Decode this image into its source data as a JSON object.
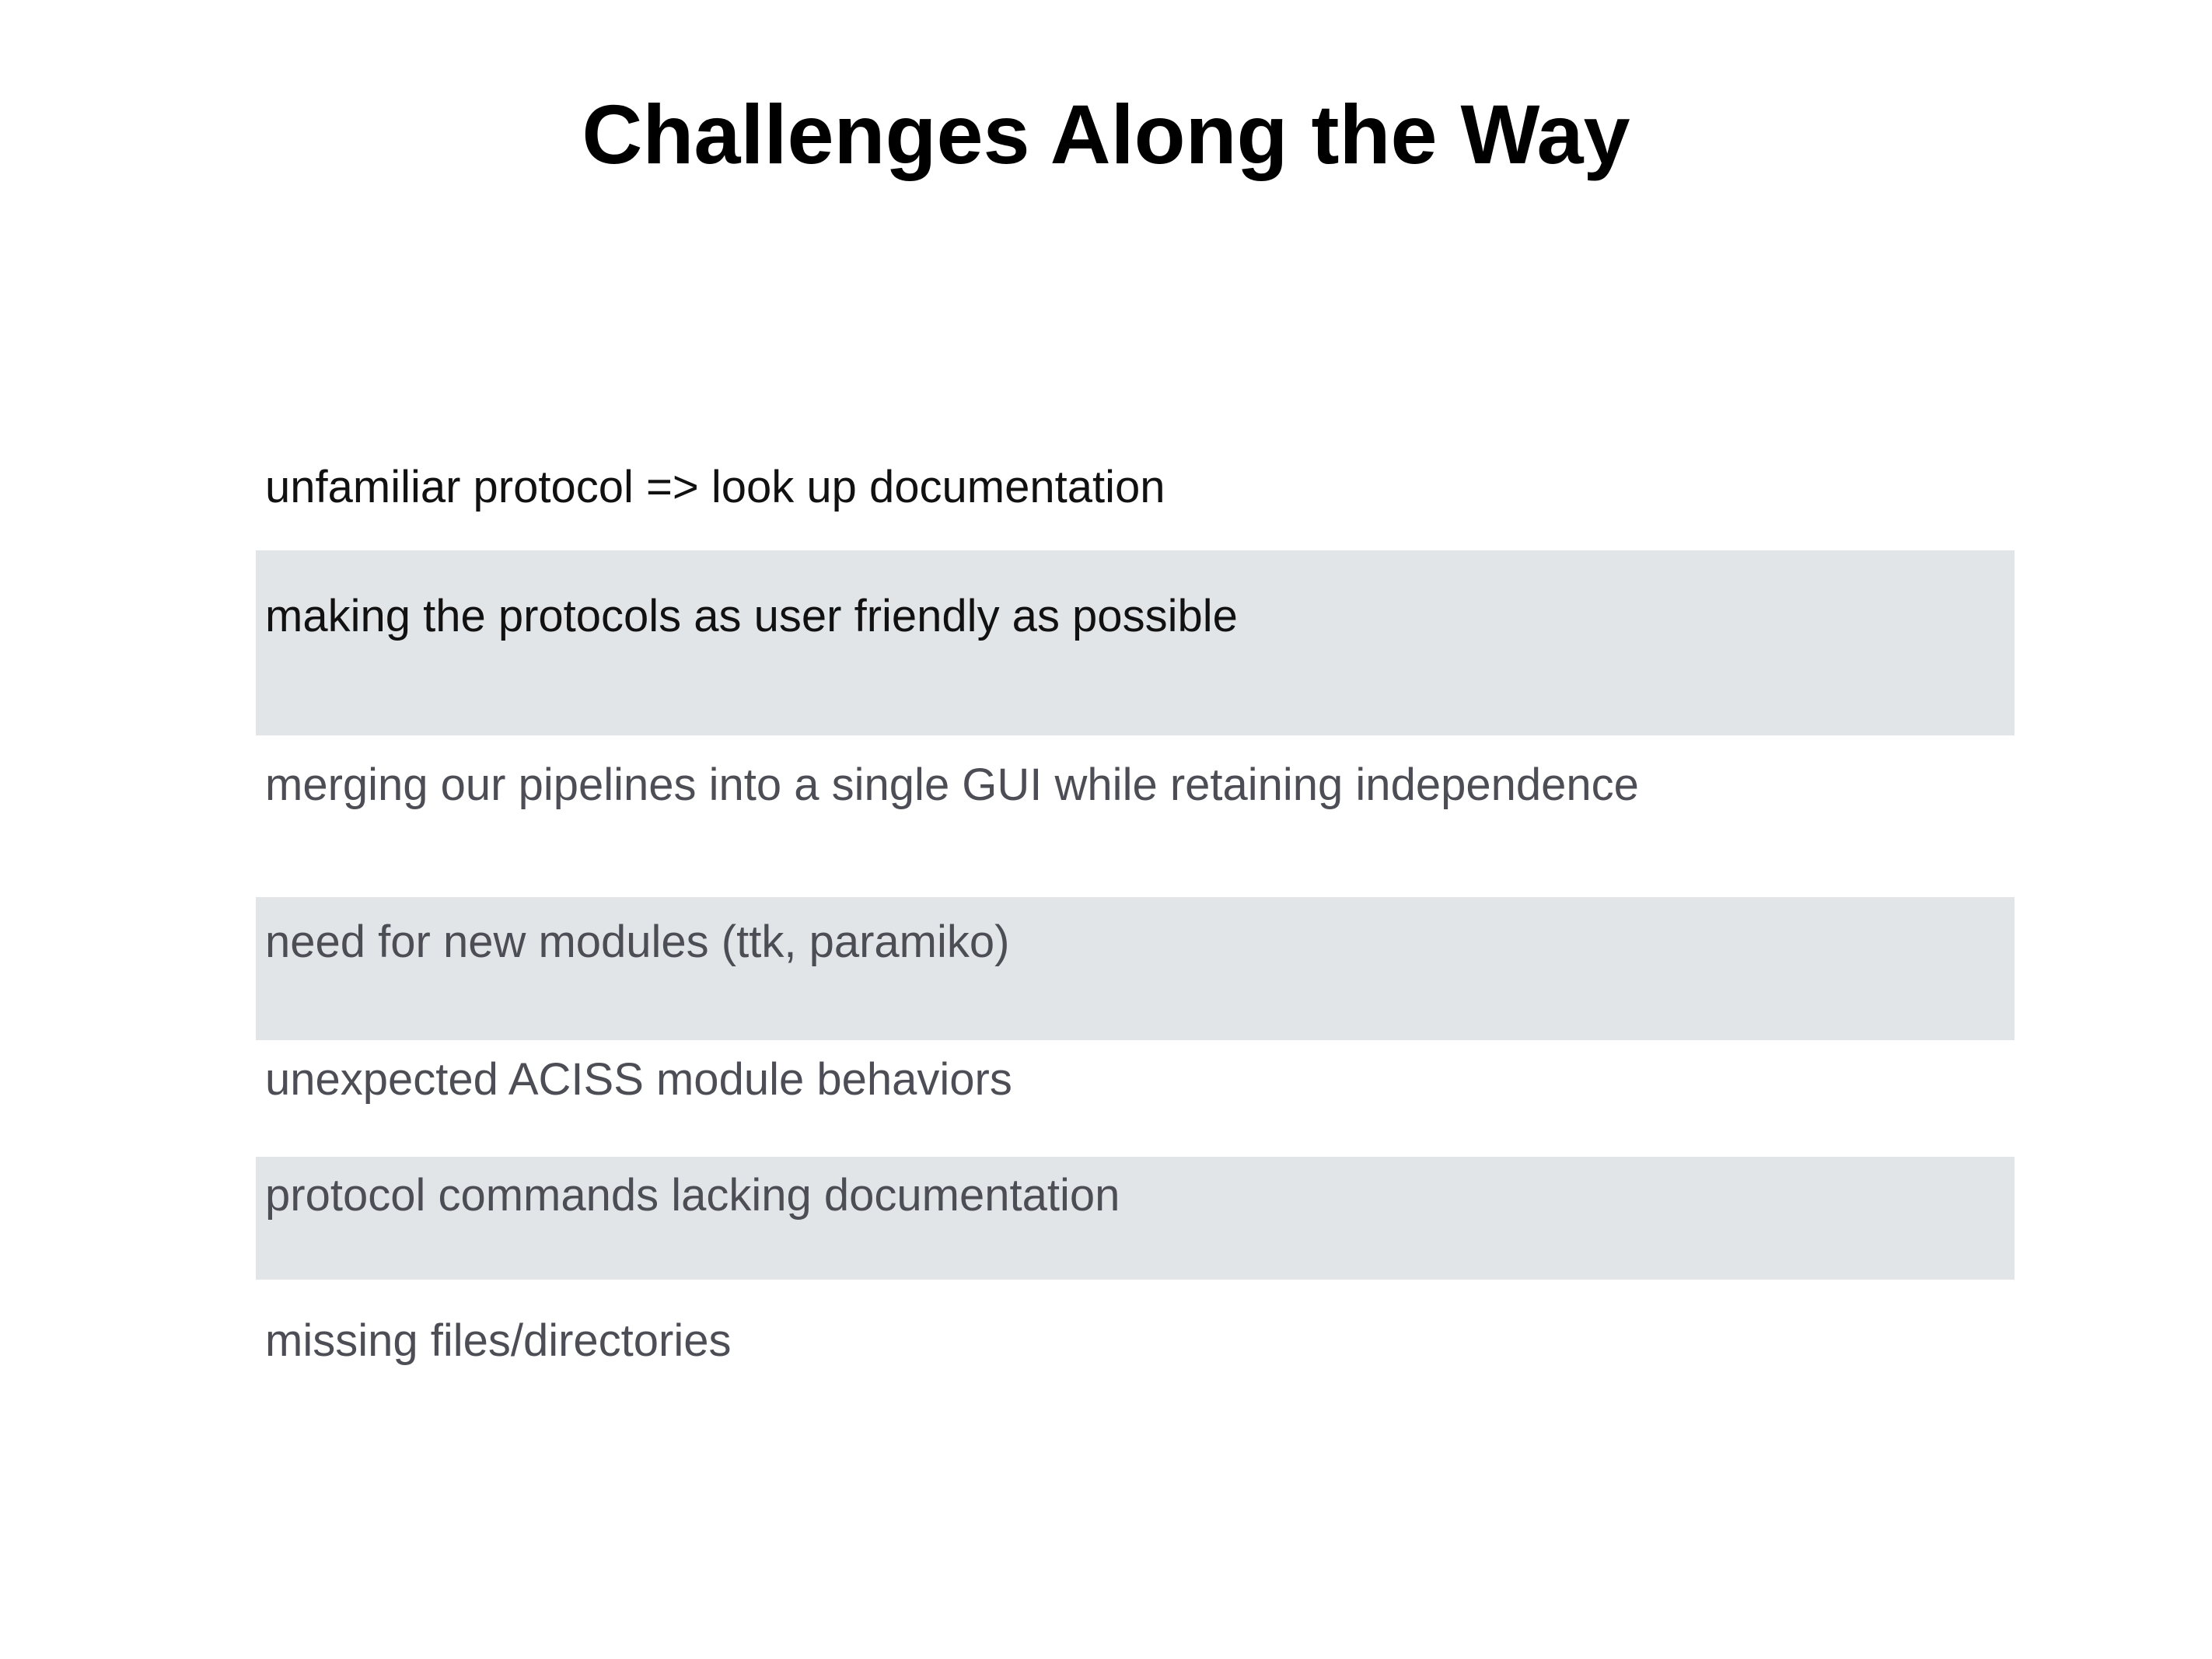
{
  "slide": {
    "title": "Challenges Along the Way",
    "items": [
      {
        "text": "unfamiliar protocol => look up documentation",
        "shaded": false
      },
      {
        "text": "making the protocols as user friendly as possible",
        "shaded": true
      },
      {
        "text": "merging our pipelines into a single GUI while retaining independence",
        "shaded": false
      },
      {
        "text": "need for new modules (ttk, paramiko)",
        "shaded": true
      },
      {
        "text": "unexpected ACISS module behaviors",
        "shaded": false
      },
      {
        "text": "protocol commands lacking documentation",
        "shaded": true
      },
      {
        "text": "missing files/directories",
        "shaded": false
      }
    ],
    "colors": {
      "shade": "#e2e5e8",
      "title": "#000000",
      "text_dark": "#111111",
      "text_gray": "#4d4d56"
    }
  }
}
